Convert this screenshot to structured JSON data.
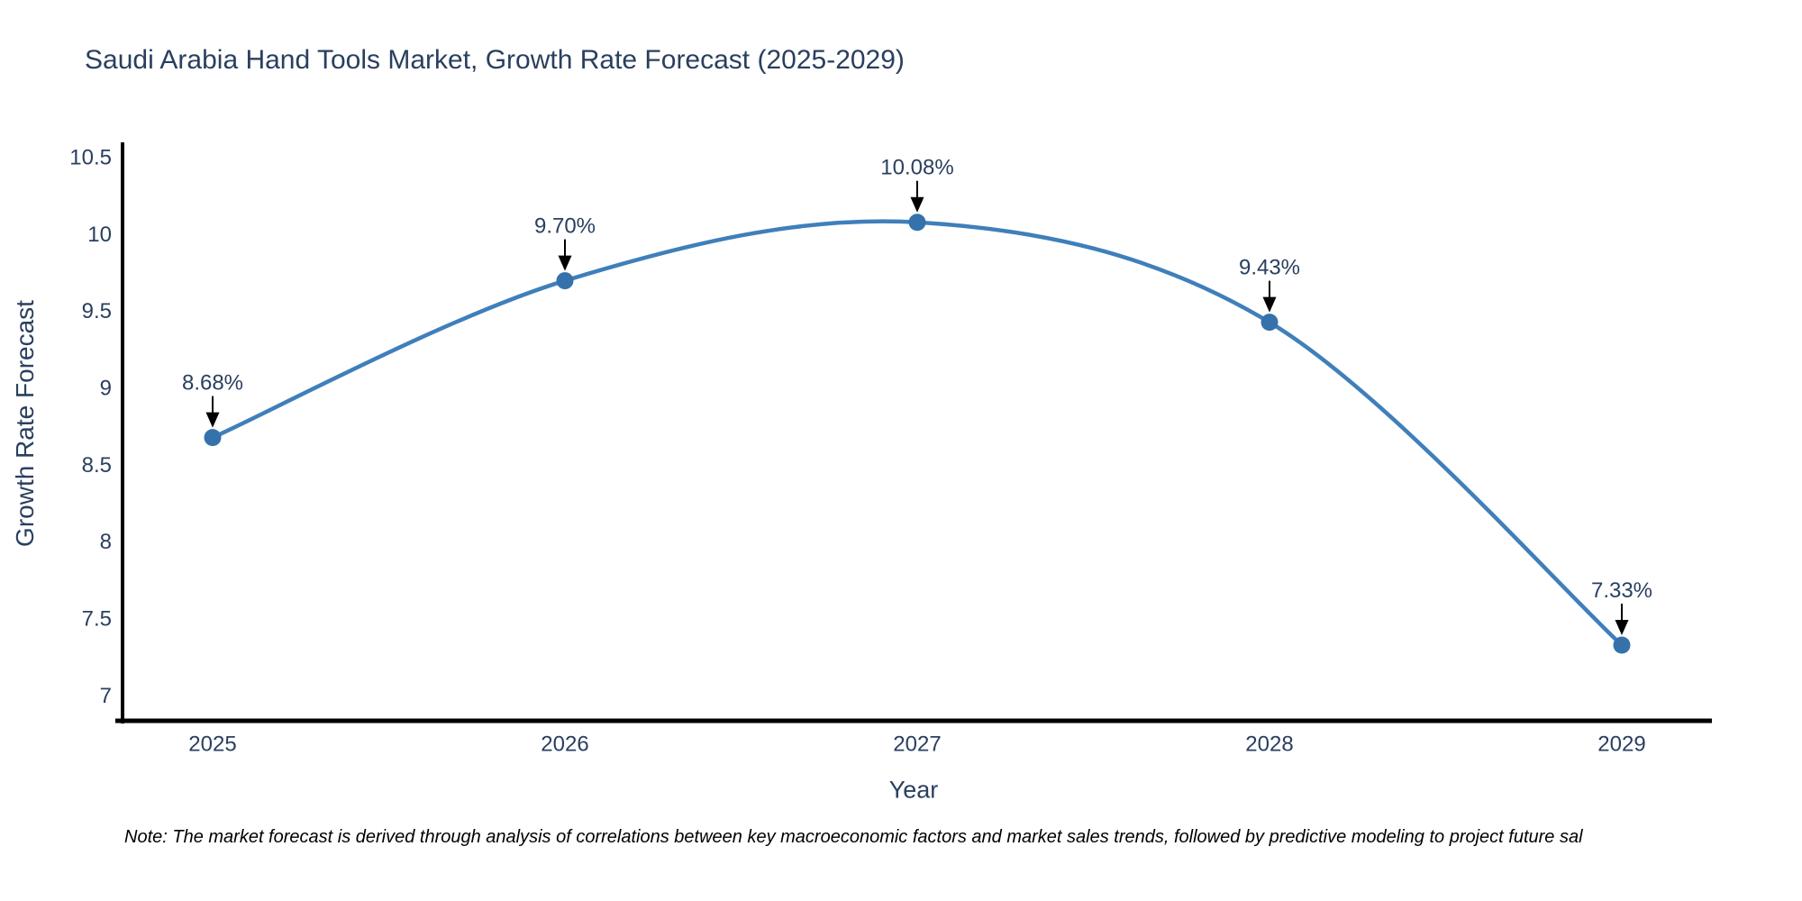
{
  "chart_data": {
    "type": "line",
    "line_shape": "spline",
    "title": "Saudi Arabia Hand Tools Market, Growth Rate Forecast (2025-2029)",
    "xlabel": "Year",
    "ylabel": "Growth Rate Forecast",
    "categories": [
      "2025",
      "2026",
      "2027",
      "2028",
      "2029"
    ],
    "values": [
      8.68,
      9.7,
      10.08,
      9.43,
      7.33
    ],
    "point_labels": [
      "8.68%",
      "9.70%",
      "10.08%",
      "9.43%",
      "7.33%"
    ],
    "yticks": [
      10.5,
      10,
      9.5,
      9,
      8.5,
      8,
      7.5,
      7
    ],
    "ylim": [
      6.82,
      10.6
    ],
    "grid": false,
    "legend": "none",
    "note": "Note: The market forecast is derived through analysis of correlations between key macroeconomic factors and market sales trends, followed by predictive modeling to project future sal",
    "colors": {
      "line": "#3f7fba",
      "marker": "#3572ab",
      "arrow": "#000000",
      "text": "#2a3f5f",
      "axis": "#000000",
      "note_text": "#000000",
      "background": "#ffffff"
    }
  }
}
